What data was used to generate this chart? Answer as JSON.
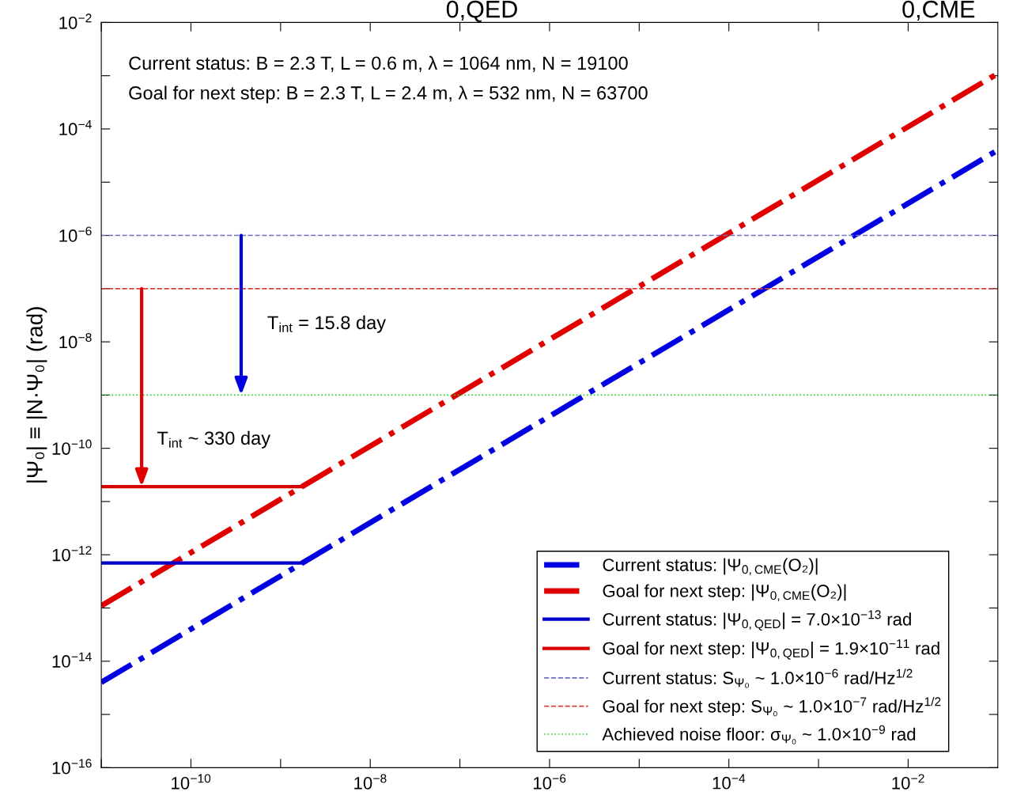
{
  "chart_data": {
    "type": "line",
    "log": "xy",
    "ylabel": "|Ψ₀| ≡ |N·Ψ₀| (rad)",
    "xlim": [
      1e-11,
      0.1
    ],
    "ylim": [
      1e-16,
      0.01
    ],
    "xticks": [
      {
        "value": 1e-11,
        "label": null
      },
      {
        "value": 1e-10,
        "label": "10$^{−10}$"
      },
      {
        "value": 1e-09,
        "label": null
      },
      {
        "value": 1e-08,
        "label": "10$^{−8}$"
      },
      {
        "value": 1e-07,
        "label": null
      },
      {
        "value": 1e-06,
        "label": "10$^{−6}$"
      },
      {
        "value": 1e-05,
        "label": null
      },
      {
        "value": 0.0001,
        "label": "10$^{−4}$"
      },
      {
        "value": 0.001,
        "label": null
      },
      {
        "value": 0.01,
        "label": "10$^{−2}$"
      }
    ],
    "yticks": [
      {
        "value": 1e-16,
        "label": "10$^{−16}$"
      },
      {
        "value": 1e-15,
        "label": null
      },
      {
        "value": 1e-14,
        "label": "10$^{−14}$"
      },
      {
        "value": 1e-13,
        "label": null
      },
      {
        "value": 1e-12,
        "label": "10$^{−12}$"
      },
      {
        "value": 1e-11,
        "label": null
      },
      {
        "value": 1e-10,
        "label": "10$^{−10}$"
      },
      {
        "value": 1e-09,
        "label": null
      },
      {
        "value": 1e-08,
        "label": "10$^{−8}$"
      },
      {
        "value": 1e-07,
        "label": null
      },
      {
        "value": 1e-06,
        "label": "10$^{−6}$"
      },
      {
        "value": 1e-05,
        "label": null
      },
      {
        "value": 0.0001,
        "label": "10$^{−4}$"
      },
      {
        "value": 0.001,
        "label": null
      },
      {
        "value": 0.01,
        "label": "10$^{−2}$"
      }
    ],
    "grid": false,
    "legend": "bottom right",
    "series": [
      {
        "name": "Current status: |Ψ$_{0,CME}$(O₂)|",
        "color": "#0000e0",
        "line_style": "dashdot",
        "x": [
          1e-11,
          0.1
        ],
        "values": [
          4e-15,
          4e-05
        ]
      },
      {
        "name": "Goal for next step: |Ψ$_{0,CME}$(O₂)|",
        "color": "#e00000",
        "line_style": "dashdot",
        "x": [
          1e-11,
          0.1
        ],
        "values": [
          1.1e-13,
          0.0011
        ]
      },
      {
        "name": "Current status: |Ψ$_{0,QED}$| = 7.0×10$^{−13}$ rad",
        "color": "#0000c8",
        "line_style": "solid",
        "x": [
          1e-11,
          1.75e-09
        ],
        "values": [
          7e-13,
          7e-13
        ]
      },
      {
        "name": "Goal for next step: |Ψ$_{0,QED}$| = 1.9×10$^{−11}$ rad",
        "color": "#d80000",
        "line_style": "solid",
        "x": [
          1e-11,
          1.7e-09
        ],
        "values": [
          1.9e-11,
          1.9e-11
        ]
      }
    ],
    "ref_lines": [
      {
        "axis": "y",
        "value": 1e-06,
        "label": "Current status: S$_{Ψ₀}$ ~ 1.0×10$^{−6}$ rad/Hz$^{1/2}$",
        "color": "#7070c0",
        "line_style": "dashed"
      },
      {
        "axis": "y",
        "value": 1e-07,
        "label": "Goal for next step: S$_{Ψ₀}$ ~ 1.0×10$^{−7}$ rad/Hz$^{1/2}$",
        "color": "#d84040",
        "line_style": "dashed"
      },
      {
        "axis": "y",
        "value": 1e-09,
        "label": "Achieved noise floor: σ$_{Ψ₀}$ ~ 1.0×10$^{−9}$ rad",
        "color": "#30d030",
        "line_style": "dotted"
      }
    ],
    "annotations": [
      "Current status: B = 2.3 T, L = 0.6 m, λ = 1064 nm, N = 19100",
      "Goal for next step: B = 2.3 T, L = 2.4 m, λ = 532 nm, N = 63700",
      "0,QED",
      "0,CME",
      "T$_{int}$ = 15.8 day",
      "T$_{int}$ ~ 330 day"
    ]
  }
}
